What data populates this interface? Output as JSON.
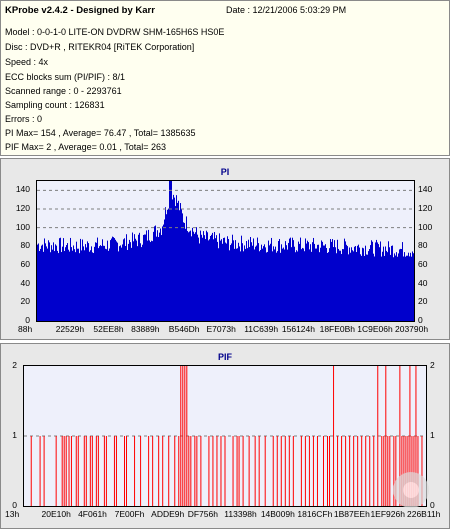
{
  "info": {
    "title": "KProbe v2.4.2 - Designed by Karr",
    "date": "Date : 12/21/2006 5:03:29 PM",
    "lines": [
      "Model : 0-0-1-0 LITE-ON DVDRW SHM-165H6S HS0E",
      "Disc : DVD+R , RITEKR04 [RiTEK Corporation]",
      "Speed : 4x",
      "ECC blocks sum (PI/PIF) : 8/1",
      "Scanned range : 0 - 2293761",
      "Sampling count : 126831",
      "Errors : 0",
      "PI Max= 154 , Average= 76.47 , Total= 1385635",
      "PIF Max= 2 , Average= 0.01 , Total= 263"
    ]
  },
  "colors": {
    "bar": "#0000cc",
    "pif": "#ff0000",
    "title": "#00008b",
    "grid": "#7f7f7f"
  },
  "chart_data": [
    {
      "type": "bar",
      "title": "PI",
      "ylim": [
        0,
        150
      ],
      "yticks": [
        "0",
        "20",
        "40",
        "60",
        "80",
        "100",
        "120",
        "140"
      ],
      "ytick_values": [
        0,
        20,
        40,
        60,
        80,
        100,
        120,
        140
      ],
      "gridlines": [
        100,
        120,
        140
      ],
      "xticks": [
        "88h",
        "22529h",
        "52EE8h",
        "83889h",
        "B546Dh",
        "E7073h",
        "11C639h",
        "156124h",
        "18FE0Bh",
        "1C9E06h",
        "203790h"
      ],
      "x_positions_hex": [
        "88",
        "22529",
        "52EE8",
        "83889",
        "B546D",
        "E7073",
        "11C639",
        "156124",
        "18FE0B",
        "1C9E06",
        "203790"
      ],
      "profile": [
        {
          "x": 0.0,
          "y": 82
        },
        {
          "x": 0.1,
          "y": 80
        },
        {
          "x": 0.2,
          "y": 82
        },
        {
          "x": 0.28,
          "y": 88
        },
        {
          "x": 0.33,
          "y": 100
        },
        {
          "x": 0.355,
          "y": 140
        },
        {
          "x": 0.37,
          "y": 130
        },
        {
          "x": 0.39,
          "y": 108
        },
        {
          "x": 0.43,
          "y": 90
        },
        {
          "x": 0.5,
          "y": 84
        },
        {
          "x": 0.6,
          "y": 82
        },
        {
          "x": 0.7,
          "y": 81
        },
        {
          "x": 0.8,
          "y": 80
        },
        {
          "x": 0.9,
          "y": 78
        },
        {
          "x": 1.0,
          "y": 76
        }
      ],
      "max": 154,
      "average": 76.47
    },
    {
      "type": "bar",
      "title": "PIF",
      "ylim": [
        0,
        2
      ],
      "yticks": [
        "0",
        "1",
        "2"
      ],
      "ytick_values": [
        0,
        1,
        2
      ],
      "gridlines": [
        1
      ],
      "xticks": [
        "13h",
        "20E10h",
        "4F061h",
        "7E00Fh",
        "ADDE9h",
        "DF756h",
        "113398h",
        "14B009h",
        "1816CFh",
        "1B87EEh",
        "1EF926h",
        "226B11h"
      ],
      "spikes_value_2": [
        0.39,
        0.395,
        0.4,
        0.405,
        0.77,
        0.88,
        0.9,
        0.935,
        0.96,
        0.975
      ],
      "spikes_value_1": [
        0.018,
        0.04,
        0.05,
        0.08,
        0.095,
        0.1,
        0.105,
        0.112,
        0.118,
        0.13,
        0.135,
        0.15,
        0.155,
        0.165,
        0.17,
        0.18,
        0.185,
        0.2,
        0.205,
        0.225,
        0.23,
        0.25,
        0.255,
        0.275,
        0.29,
        0.31,
        0.32,
        0.335,
        0.345,
        0.36,
        0.375,
        0.385,
        0.41,
        0.415,
        0.425,
        0.43,
        0.44,
        0.46,
        0.47,
        0.48,
        0.49,
        0.5,
        0.52,
        0.53,
        0.535,
        0.545,
        0.56,
        0.575,
        0.585,
        0.6,
        0.62,
        0.63,
        0.64,
        0.65,
        0.66,
        0.67,
        0.69,
        0.7,
        0.71,
        0.72,
        0.73,
        0.745,
        0.755,
        0.76,
        0.78,
        0.79,
        0.8,
        0.81,
        0.82,
        0.83,
        0.84,
        0.85,
        0.86,
        0.87,
        0.89,
        0.895,
        0.905,
        0.91,
        0.92,
        0.925,
        0.94,
        0.945,
        0.95,
        0.955,
        0.965,
        0.97,
        0.98,
        0.99
      ]
    }
  ]
}
